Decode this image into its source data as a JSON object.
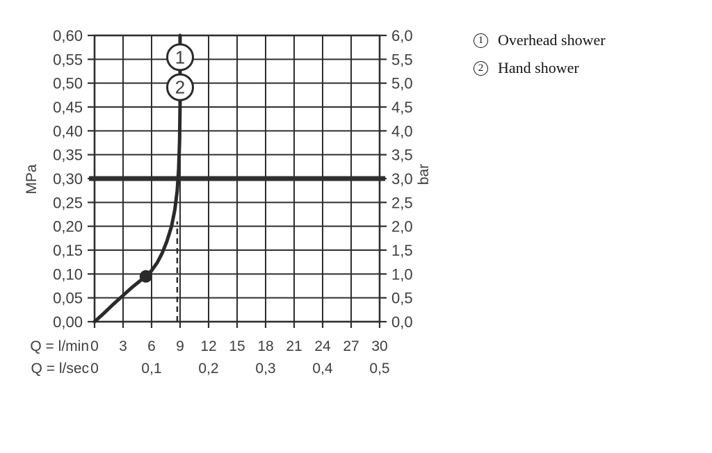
{
  "figure": {
    "kind": "shower pressure / flow-rate diagram"
  },
  "legend": {
    "items": [
      {
        "num": "1",
        "label": "Overhead shower"
      },
      {
        "num": "2",
        "label": "Hand shower"
      }
    ]
  },
  "colors": {
    "grid": "#2e2e2e",
    "frame": "#2e2e2e",
    "curve": "#2a2a2a",
    "reference_line": "#2f2f2f",
    "tick_label": "#3e3e3e",
    "legend_text": "#151515",
    "background": "#ffffff",
    "callout_fill": "#ffffff"
  },
  "chart_data": {
    "type": "line",
    "title": "",
    "grid": true,
    "x_axis": {
      "min": 0,
      "max": 30,
      "gridline_step_lmin": 3,
      "rows": [
        {
          "prefix": "Q = l/min",
          "tick_values": [
            0,
            3,
            6,
            9,
            12,
            15,
            18,
            21,
            24,
            27,
            30
          ],
          "tick_labels": [
            "0",
            "3",
            "6",
            "9",
            "12",
            "15",
            "18",
            "21",
            "24",
            "27",
            "30"
          ]
        },
        {
          "prefix": "Q = l/sec",
          "tick_values": [
            0,
            6,
            12,
            18,
            24,
            30
          ],
          "tick_labels": [
            "0",
            "0,1",
            "0,2",
            "0,3",
            "0,4",
            "0,5"
          ]
        }
      ]
    },
    "y_axis_left": {
      "label": "MPa",
      "min": 0,
      "max": 0.6,
      "step": 0.05,
      "tick_labels_top_to_bottom": [
        "0,60",
        "0,55",
        "0,50",
        "0,45",
        "0,40",
        "0,35",
        "0,30",
        "0,25",
        "0,20",
        "0,15",
        "0,10",
        "0,05",
        "0,00"
      ]
    },
    "y_axis_right": {
      "label": "bar",
      "min": 0,
      "max": 6,
      "step": 0.5,
      "tick_labels_top_to_bottom": [
        "6,0",
        "5,5",
        "5,0",
        "4,5",
        "4,0",
        "3,5",
        "3,0",
        "2,5",
        "2,0",
        "1,5",
        "1,0",
        "0,5",
        "0,0"
      ]
    },
    "reference_line": {
      "mpa": 0.3,
      "bar": 3.0
    },
    "dashed_guide": {
      "lmin": 8.7,
      "from_mpa": 0.0,
      "to_mpa": 0.21
    },
    "operating_point": {
      "lmin": 5.4,
      "mpa": 0.095
    },
    "curve_points_lmin_mpa": [
      [
        0,
        0
      ],
      [
        1,
        0.018
      ],
      [
        2,
        0.037
      ],
      [
        3,
        0.055
      ],
      [
        4,
        0.073
      ],
      [
        5,
        0.089
      ],
      [
        5.4,
        0.095
      ],
      [
        6,
        0.107
      ],
      [
        6.6,
        0.124
      ],
      [
        7.1,
        0.143
      ],
      [
        7.6,
        0.168
      ],
      [
        8.1,
        0.2
      ],
      [
        8.45,
        0.235
      ],
      [
        8.7,
        0.275
      ],
      [
        8.85,
        0.32
      ],
      [
        8.95,
        0.38
      ],
      [
        9,
        0.46
      ],
      [
        9,
        0.6
      ]
    ],
    "callouts": [
      {
        "num": "1",
        "lmin": 9,
        "mpa": 0.55
      },
      {
        "num": "2",
        "lmin": 9,
        "mpa": 0.5
      }
    ],
    "series": [
      {
        "id": "1",
        "name": "Overhead shower",
        "vertical_asymptote_lmin": 9
      },
      {
        "id": "2",
        "name": "Hand shower",
        "vertical_asymptote_lmin": 9
      }
    ]
  }
}
